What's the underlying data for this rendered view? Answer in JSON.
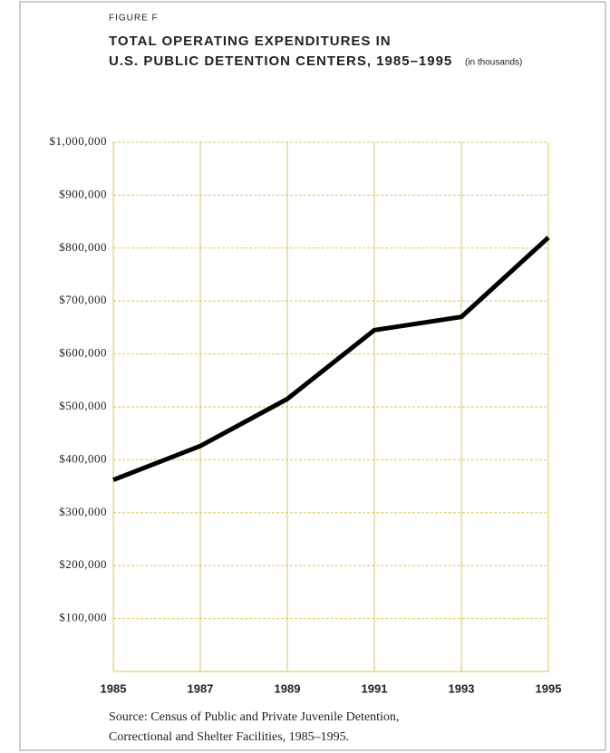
{
  "chart_data": {
    "type": "line",
    "figure_label": "FIGURE F",
    "title": [
      "TOTAL OPERATING EXPENDITURES IN",
      "U.S. PUBLIC DETENTION CENTERS, 1985–1995"
    ],
    "unit_note": "(in thousands)",
    "categories": [
      "1985",
      "1987",
      "1989",
      "1991",
      "1993",
      "1995"
    ],
    "values": [
      362000,
      426000,
      515000,
      645000,
      670000,
      820000
    ],
    "color": "#000000",
    "grid_color": "#d9c65a",
    "ylim": [
      0,
      1000000
    ],
    "yticks": [
      {
        "value": 100000,
        "label": "$100,000"
      },
      {
        "value": 200000,
        "label": "$200,000"
      },
      {
        "value": 300000,
        "label": "$300,000"
      },
      {
        "value": 400000,
        "label": "$400,000"
      },
      {
        "value": 500000,
        "label": "$500,000"
      },
      {
        "value": 600000,
        "label": "$600,000"
      },
      {
        "value": 700000,
        "label": "$700,000"
      },
      {
        "value": 800000,
        "label": "$800,000"
      },
      {
        "value": 900000,
        "label": "$900,000"
      },
      {
        "value": 1000000,
        "label": "$1,000,000"
      }
    ],
    "grid": true,
    "source": [
      "Source: Census of Public and Private Juvenile Detention,",
      "Correctional and Shelter Facilities, 1985–1995."
    ]
  }
}
